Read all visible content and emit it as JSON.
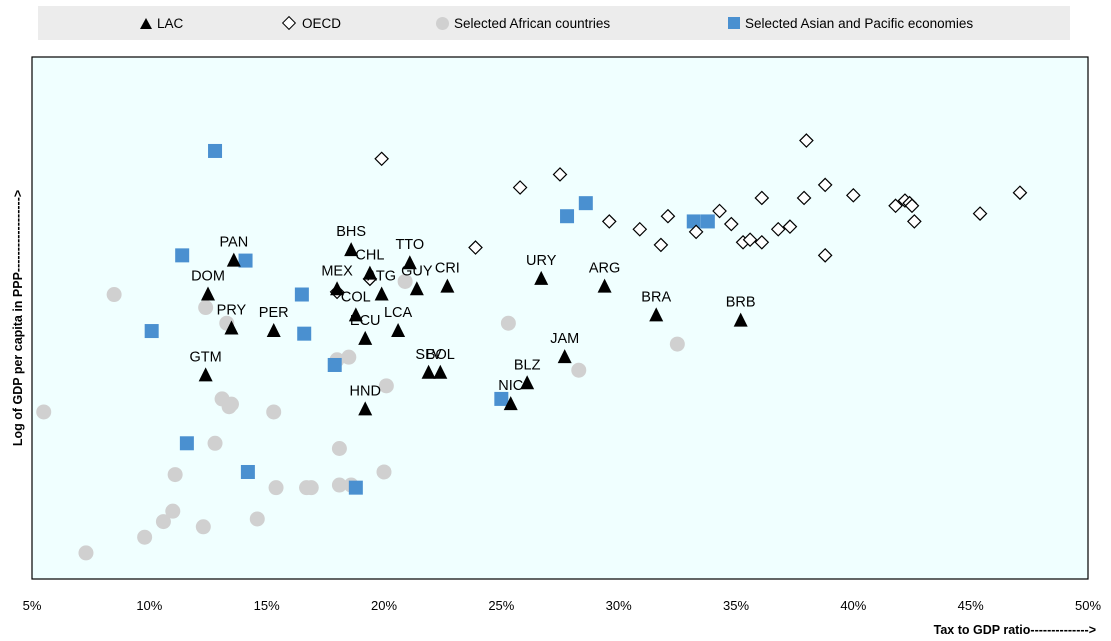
{
  "chart_data": {
    "type": "scatter",
    "xlabel": "Tax to GDP ratio-------------->",
    "ylabel": "Log of GDP per capita in PPP------------------>",
    "x_ticks": [
      "5%",
      "10%",
      "15%",
      "20%",
      "25%",
      "30%",
      "35%",
      "40%",
      "45%",
      "50%"
    ],
    "xlim": [
      5,
      50
    ],
    "ylim": [
      0,
      100
    ],
    "grid": false,
    "legend_position": "top",
    "series": [
      {
        "name": "LAC",
        "marker": "triangle",
        "color": "#000000",
        "points": [
          {
            "label": "PAN",
            "x": 13.6,
            "y": 61
          },
          {
            "label": "DOM",
            "x": 12.5,
            "y": 54.5
          },
          {
            "label": "PRY",
            "x": 13.5,
            "y": 48
          },
          {
            "label": "GTM",
            "x": 12.4,
            "y": 39
          },
          {
            "label": "PER",
            "x": 15.3,
            "y": 47.5
          },
          {
            "label": "BHS",
            "x": 18.6,
            "y": 63
          },
          {
            "label": "CHL",
            "x": 19.4,
            "y": 58.5
          },
          {
            "label": "MEX",
            "x": 18.0,
            "y": 55.5
          },
          {
            "label": "ATG",
            "x": 19.9,
            "y": 54.5
          },
          {
            "label": "COL",
            "x": 18.8,
            "y": 50.5
          },
          {
            "label": "ECU",
            "x": 19.2,
            "y": 46
          },
          {
            "label": "LCA",
            "x": 20.6,
            "y": 47.5
          },
          {
            "label": "TTO",
            "x": 21.1,
            "y": 60.5
          },
          {
            "label": "GUY",
            "x": 21.4,
            "y": 55.5
          },
          {
            "label": "CRI",
            "x": 22.7,
            "y": 56
          },
          {
            "label": "SLV",
            "x": 21.9,
            "y": 39.5
          },
          {
            "label": "BOL",
            "x": 22.4,
            "y": 39.5
          },
          {
            "label": "HND",
            "x": 19.2,
            "y": 32.5
          },
          {
            "label": "URY",
            "x": 26.7,
            "y": 57.5
          },
          {
            "label": "ARG",
            "x": 29.4,
            "y": 56
          },
          {
            "label": "JAM",
            "x": 27.7,
            "y": 42.5
          },
          {
            "label": "BLZ",
            "x": 26.1,
            "y": 37.5
          },
          {
            "label": "NIC",
            "x": 25.4,
            "y": 33.5
          },
          {
            "label": "BRA",
            "x": 31.6,
            "y": 50.5
          },
          {
            "label": "BRB",
            "x": 35.2,
            "y": 49.5
          }
        ]
      },
      {
        "name": "OECD",
        "marker": "diamond",
        "color": "#000000",
        "points": [
          {
            "x": 18.0,
            "y": 55
          },
          {
            "x": 19.4,
            "y": 57.5
          },
          {
            "x": 19.9,
            "y": 80.5
          },
          {
            "x": 23.9,
            "y": 63.5
          },
          {
            "x": 25.8,
            "y": 75
          },
          {
            "x": 27.5,
            "y": 77.5
          },
          {
            "x": 29.6,
            "y": 68.5
          },
          {
            "x": 30.9,
            "y": 67
          },
          {
            "x": 31.8,
            "y": 64
          },
          {
            "x": 32.1,
            "y": 69.5
          },
          {
            "x": 33.3,
            "y": 66.5
          },
          {
            "x": 34.3,
            "y": 70.5
          },
          {
            "x": 34.8,
            "y": 68
          },
          {
            "x": 35.3,
            "y": 64.5
          },
          {
            "x": 35.6,
            "y": 65
          },
          {
            "x": 36.1,
            "y": 73
          },
          {
            "x": 36.1,
            "y": 64.5
          },
          {
            "x": 36.8,
            "y": 67
          },
          {
            "x": 37.3,
            "y": 67.5
          },
          {
            "x": 38.0,
            "y": 84
          },
          {
            "x": 37.9,
            "y": 73
          },
          {
            "x": 38.8,
            "y": 75.5
          },
          {
            "x": 38.8,
            "y": 62
          },
          {
            "x": 40.0,
            "y": 73.5
          },
          {
            "x": 41.8,
            "y": 71.5
          },
          {
            "x": 42.2,
            "y": 72.5
          },
          {
            "x": 42.4,
            "y": 72
          },
          {
            "x": 42.5,
            "y": 71.5
          },
          {
            "x": 42.6,
            "y": 68.5
          },
          {
            "x": 45.4,
            "y": 70
          },
          {
            "x": 47.1,
            "y": 74
          }
        ]
      },
      {
        "name": "Selected African countries",
        "marker": "circle",
        "color": "#d0d0d0",
        "points": [
          {
            "x": 5.5,
            "y": 32
          },
          {
            "x": 7.3,
            "y": 5
          },
          {
            "x": 8.5,
            "y": 54.5
          },
          {
            "x": 9.8,
            "y": 8
          },
          {
            "x": 10.6,
            "y": 11
          },
          {
            "x": 11.0,
            "y": 13
          },
          {
            "x": 11.1,
            "y": 20
          },
          {
            "x": 12.3,
            "y": 10
          },
          {
            "x": 12.4,
            "y": 52
          },
          {
            "x": 12.8,
            "y": 26
          },
          {
            "x": 13.1,
            "y": 34.5
          },
          {
            "x": 13.3,
            "y": 49
          },
          {
            "x": 13.4,
            "y": 33
          },
          {
            "x": 13.5,
            "y": 33.5
          },
          {
            "x": 14.6,
            "y": 11.5
          },
          {
            "x": 15.3,
            "y": 32
          },
          {
            "x": 15.4,
            "y": 17.5
          },
          {
            "x": 16.7,
            "y": 17.5
          },
          {
            "x": 16.9,
            "y": 17.5
          },
          {
            "x": 18.0,
            "y": 42
          },
          {
            "x": 18.1,
            "y": 25
          },
          {
            "x": 18.1,
            "y": 18
          },
          {
            "x": 18.5,
            "y": 42.5
          },
          {
            "x": 18.6,
            "y": 18
          },
          {
            "x": 20.0,
            "y": 20.5
          },
          {
            "x": 20.1,
            "y": 37
          },
          {
            "x": 20.9,
            "y": 57
          },
          {
            "x": 25.3,
            "y": 49
          },
          {
            "x": 28.3,
            "y": 40
          },
          {
            "x": 32.5,
            "y": 45
          }
        ]
      },
      {
        "name": "Selected Asian and Pacific economies",
        "marker": "square",
        "color": "#4a90d0",
        "points": [
          {
            "x": 12.8,
            "y": 82
          },
          {
            "x": 11.4,
            "y": 62
          },
          {
            "x": 14.1,
            "y": 61
          },
          {
            "x": 10.1,
            "y": 47.5
          },
          {
            "x": 16.5,
            "y": 54.5
          },
          {
            "x": 16.6,
            "y": 47
          },
          {
            "x": 17.9,
            "y": 41
          },
          {
            "x": 11.6,
            "y": 26
          },
          {
            "x": 14.2,
            "y": 20.5
          },
          {
            "x": 18.8,
            "y": 17.5
          },
          {
            "x": 25.0,
            "y": 34.5
          },
          {
            "x": 27.8,
            "y": 69.5
          },
          {
            "x": 28.6,
            "y": 72
          },
          {
            "x": 33.2,
            "y": 68.5
          },
          {
            "x": 33.8,
            "y": 68.5
          }
        ]
      }
    ]
  }
}
